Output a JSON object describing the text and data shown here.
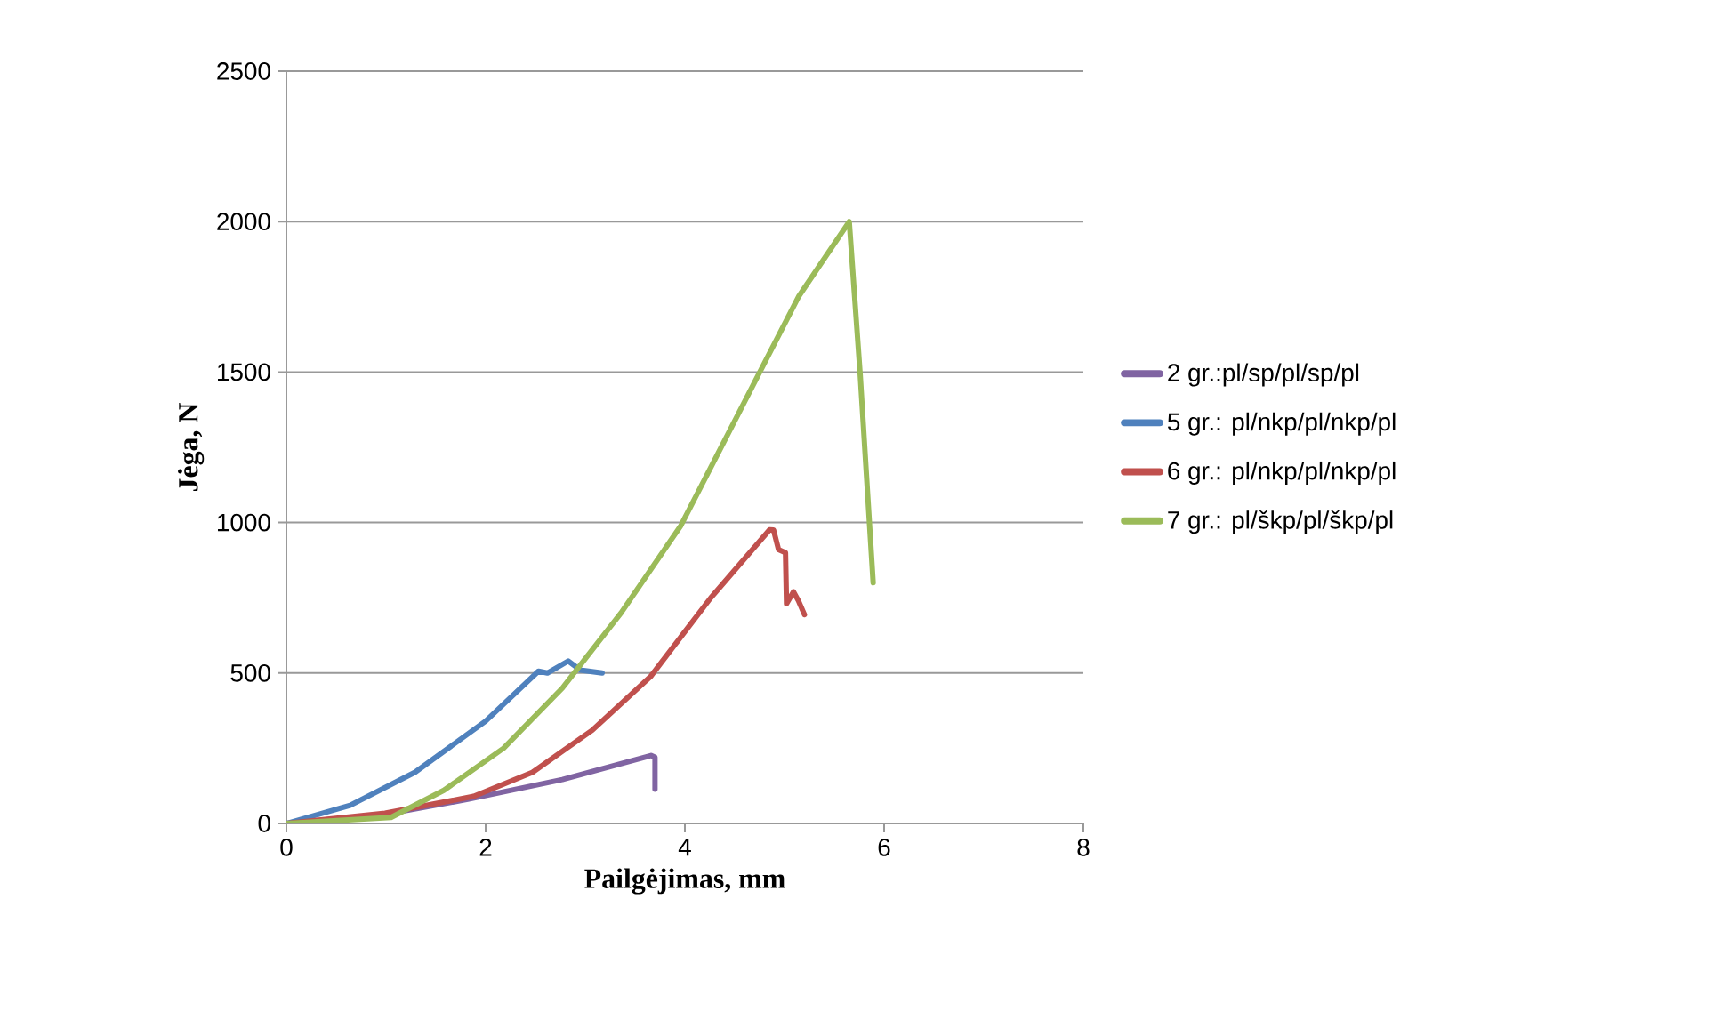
{
  "chart_data": {
    "type": "line",
    "xlabel": "Pailgėjimas, mm",
    "ylabel": "Jėga, N",
    "xlim": [
      0,
      8
    ],
    "ylim": [
      0,
      2500
    ],
    "xticks": [
      0,
      2,
      4,
      6,
      8
    ],
    "yticks": [
      0,
      500,
      1000,
      1500,
      2000,
      2500
    ],
    "grid": "y",
    "legend": "right",
    "marker": "none",
    "line_style": "solid",
    "series": [
      {
        "name": "2  gr.:pl/sp/pl/sp/pl",
        "color": "#8064a2",
        "x": [
          0,
          0.99,
          1.82,
          2.77,
          3.66,
          3.7,
          3.7
        ],
        "values": [
          0,
          30,
          80,
          146,
          226,
          220,
          114
        ]
      },
      {
        "name": "5  gr.: pl/nkp/pl/nkp/pl",
        "color": "#4f81bd",
        "x": [
          0,
          0.64,
          1.29,
          2.0,
          2.53,
          2.62,
          2.83,
          2.95,
          3.17
        ],
        "values": [
          0,
          60,
          170,
          340,
          506,
          500,
          540,
          510,
          500
        ]
      },
      {
        "name": "6 gr.: pl/nkp/pl/nkp/pl",
        "color": "#c0504d",
        "x": [
          0,
          0.99,
          1.88,
          2.47,
          3.07,
          3.66,
          4.26,
          4.85,
          4.89,
          4.94,
          5.01,
          5.02,
          5.09,
          5.14,
          5.2
        ],
        "values": [
          0,
          34,
          90,
          170,
          310,
          490,
          750,
          976,
          975,
          910,
          900,
          730,
          770,
          740,
          694
        ]
      },
      {
        "name": "7 gr.: pl/škp/pl/škp/pl",
        "color": "#9bbb59",
        "x": [
          0,
          1.05,
          1.58,
          2.18,
          2.77,
          3.36,
          3.96,
          4.55,
          5.14,
          5.65,
          5.76,
          5.89
        ],
        "values": [
          0,
          20,
          110,
          250,
          450,
          700,
          990,
          1370,
          1750,
          2000,
          1490,
          800
        ]
      }
    ]
  }
}
